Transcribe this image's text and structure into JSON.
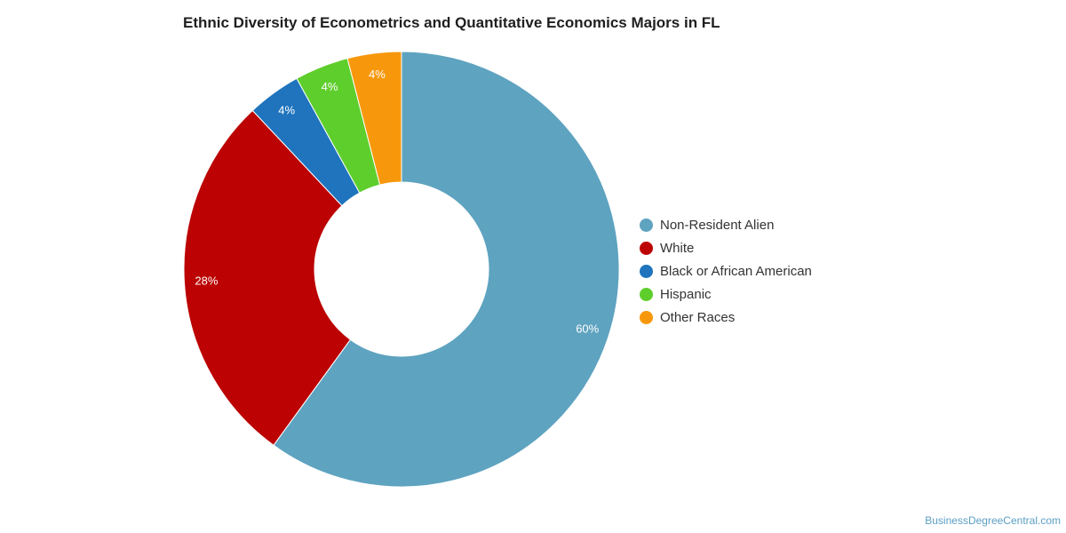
{
  "chart_data": {
    "type": "pie",
    "title": "Ethnic Diversity of Econometrics and Quantitative Economics Majors in FL",
    "donut": true,
    "legend_position": "right",
    "categories": [
      "Non-Resident Alien",
      "White",
      "Black or African American",
      "Hispanic",
      "Other Races"
    ],
    "values": [
      60,
      28,
      4,
      4,
      4
    ],
    "value_labels": [
      "60%",
      "28%",
      "4%",
      "4%",
      "4%"
    ],
    "colors": [
      "#5ea3c0",
      "#bc0202",
      "#1f74bd",
      "#5ece2c",
      "#f7980c"
    ]
  },
  "source": "BusinessDegreeCentral.com"
}
